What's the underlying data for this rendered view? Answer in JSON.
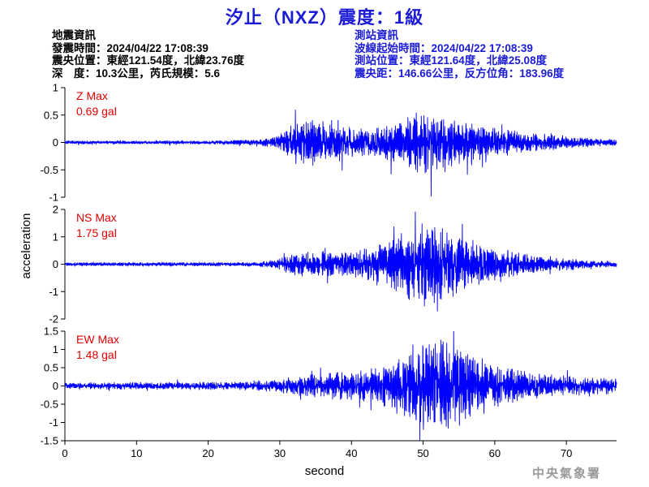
{
  "page": {
    "title": "汐止（NXZ）震度：1級"
  },
  "info_left": {
    "heading": "地震資訊",
    "lines": [
      "發震時間：2024/04/22 17:08:39",
      "震央位置：東經121.54度，北緯23.76度",
      "深　度：10.3公里，芮氏規模：5.6"
    ]
  },
  "info_right": {
    "heading": "測站資訊",
    "lines": [
      "波線起始時間：2024/04/22 17:08:39",
      "測站位置：東經121.64度，北緯25.08度",
      "震央距：146.66公里，反方位角：183.96度"
    ]
  },
  "watermark": "中央氣象署",
  "colors": {
    "trace": "#0000ff",
    "max_label": "#e00000",
    "title": "#1b1bd6",
    "station_info": "#1b1bd6",
    "axis": "#000000"
  },
  "chart_data": {
    "type": "line",
    "xlabel": "second",
    "ylabel": "acceleration",
    "xlim": [
      0,
      77
    ],
    "xticks": [
      0,
      10,
      20,
      30,
      40,
      50,
      60,
      70
    ],
    "panels": [
      {
        "name": "Z",
        "max_label": "Z Max",
        "max_value_label": "0.69 gal",
        "ylim": [
          -1,
          1
        ],
        "yticks": [
          -1,
          -0.5,
          0,
          0.5,
          1
        ],
        "ytick_labels": [
          "-1",
          "-0.5",
          "0",
          "0.5",
          "1"
        ],
        "envelope": [
          [
            0,
            0.03
          ],
          [
            5,
            0.03
          ],
          [
            20,
            0.03
          ],
          [
            27,
            0.05
          ],
          [
            30,
            0.13
          ],
          [
            31,
            0.3
          ],
          [
            33,
            0.45
          ],
          [
            35,
            0.38
          ],
          [
            38,
            0.3
          ],
          [
            42,
            0.25
          ],
          [
            47,
            0.35
          ],
          [
            49,
            0.55
          ],
          [
            51,
            0.58
          ],
          [
            53,
            0.45
          ],
          [
            56,
            0.35
          ],
          [
            60,
            0.25
          ],
          [
            65,
            0.17
          ],
          [
            70,
            0.12
          ],
          [
            74,
            0.07
          ],
          [
            77,
            0.06
          ]
        ]
      },
      {
        "name": "NS",
        "max_label": "NS Max",
        "max_value_label": "1.75 gal",
        "ylim": [
          -2,
          2
        ],
        "yticks": [
          -2,
          -1,
          0,
          1,
          2
        ],
        "ytick_labels": [
          "-2",
          "-1",
          "0",
          "1",
          "2"
        ],
        "envelope": [
          [
            0,
            0.06
          ],
          [
            10,
            0.07
          ],
          [
            20,
            0.06
          ],
          [
            27,
            0.08
          ],
          [
            30,
            0.2
          ],
          [
            32,
            0.4
          ],
          [
            35,
            0.45
          ],
          [
            40,
            0.45
          ],
          [
            45,
            0.75
          ],
          [
            48,
            1.2
          ],
          [
            50,
            1.45
          ],
          [
            52,
            1.35
          ],
          [
            55,
            1.05
          ],
          [
            58,
            0.7
          ],
          [
            62,
            0.45
          ],
          [
            66,
            0.3
          ],
          [
            70,
            0.22
          ],
          [
            74,
            0.12
          ],
          [
            77,
            0.12
          ]
        ]
      },
      {
        "name": "EW",
        "max_label": "EW Max",
        "max_value_label": "1.48 gal",
        "ylim": [
          -1.5,
          1.5
        ],
        "yticks": [
          -1.5,
          -1,
          -0.5,
          0,
          0.5,
          1,
          1.5
        ],
        "ytick_labels": [
          "-1.5",
          "-1",
          "-0.5",
          "0",
          "0.5",
          "1",
          "1.5"
        ],
        "envelope": [
          [
            0,
            0.08
          ],
          [
            10,
            0.1
          ],
          [
            20,
            0.1
          ],
          [
            27,
            0.12
          ],
          [
            30,
            0.18
          ],
          [
            34,
            0.3
          ],
          [
            38,
            0.35
          ],
          [
            42,
            0.4
          ],
          [
            45,
            0.6
          ],
          [
            48,
            0.9
          ],
          [
            50,
            1.15
          ],
          [
            52,
            1.25
          ],
          [
            55,
            1.05
          ],
          [
            58,
            0.75
          ],
          [
            62,
            0.45
          ],
          [
            66,
            0.33
          ],
          [
            70,
            0.26
          ],
          [
            74,
            0.22
          ],
          [
            77,
            0.2
          ]
        ]
      }
    ]
  }
}
